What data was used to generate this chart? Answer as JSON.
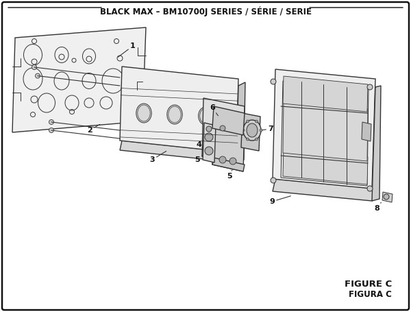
{
  "title": "BLACK MAX – BM10700J SERIES / SÉRIE / SERIE",
  "title_fontsize": 8.5,
  "figure_c_text": "FIGURE C",
  "figura_c_text": "FIGURA C",
  "bg_color": "#ffffff",
  "border_color": "#111111",
  "line_color": "#333333",
  "label_color": "#111111",
  "gray_fill": "#e8e8e8",
  "mid_gray": "#d0d0d0",
  "dark_gray": "#aaaaaa"
}
